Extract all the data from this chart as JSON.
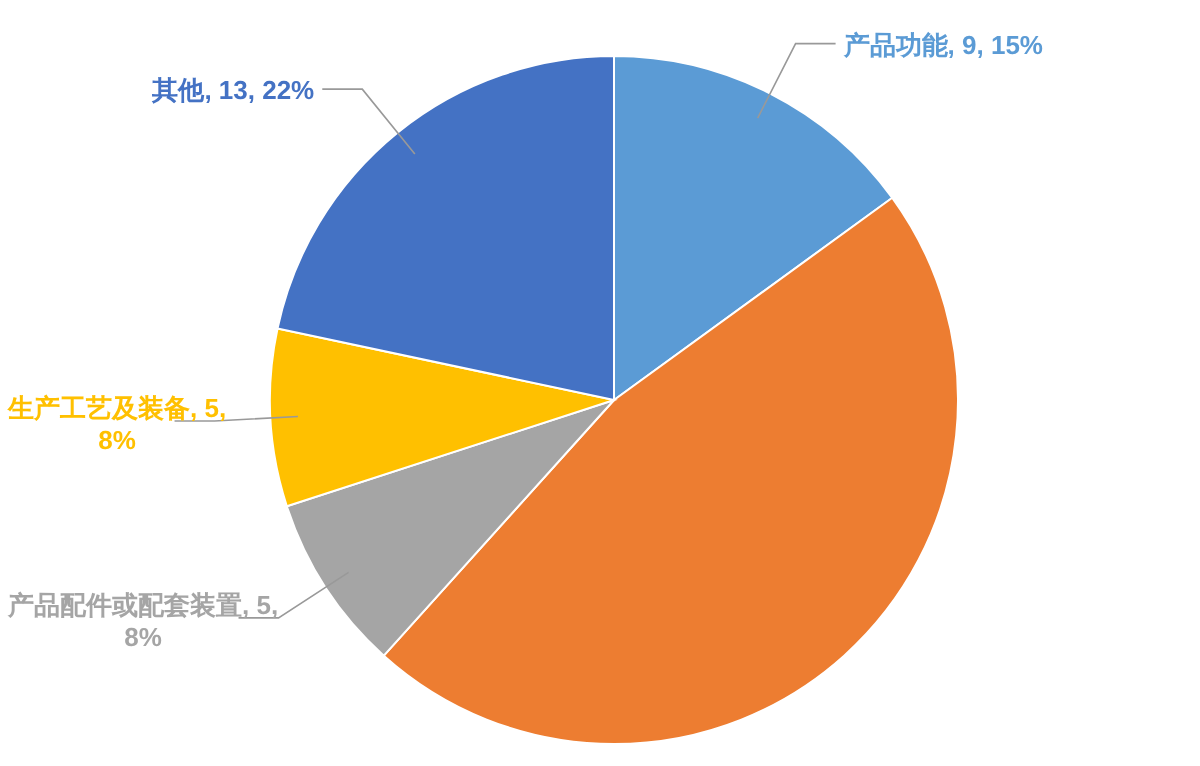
{
  "chart_data": {
    "type": "pie",
    "categories": [
      "产品功能",
      null,
      "产品配件或配套装置",
      "生产工艺及装备",
      "其他"
    ],
    "values": [
      9,
      28,
      5,
      5,
      13
    ],
    "value_labels": [
      "9, 15%",
      null,
      "5, 8%",
      "5, 8%",
      "13, 22%"
    ],
    "colors": [
      "#5b9bd5",
      "#ed7d31",
      "#a5a5a5",
      "#ffc000",
      "#4472c4"
    ]
  }
}
